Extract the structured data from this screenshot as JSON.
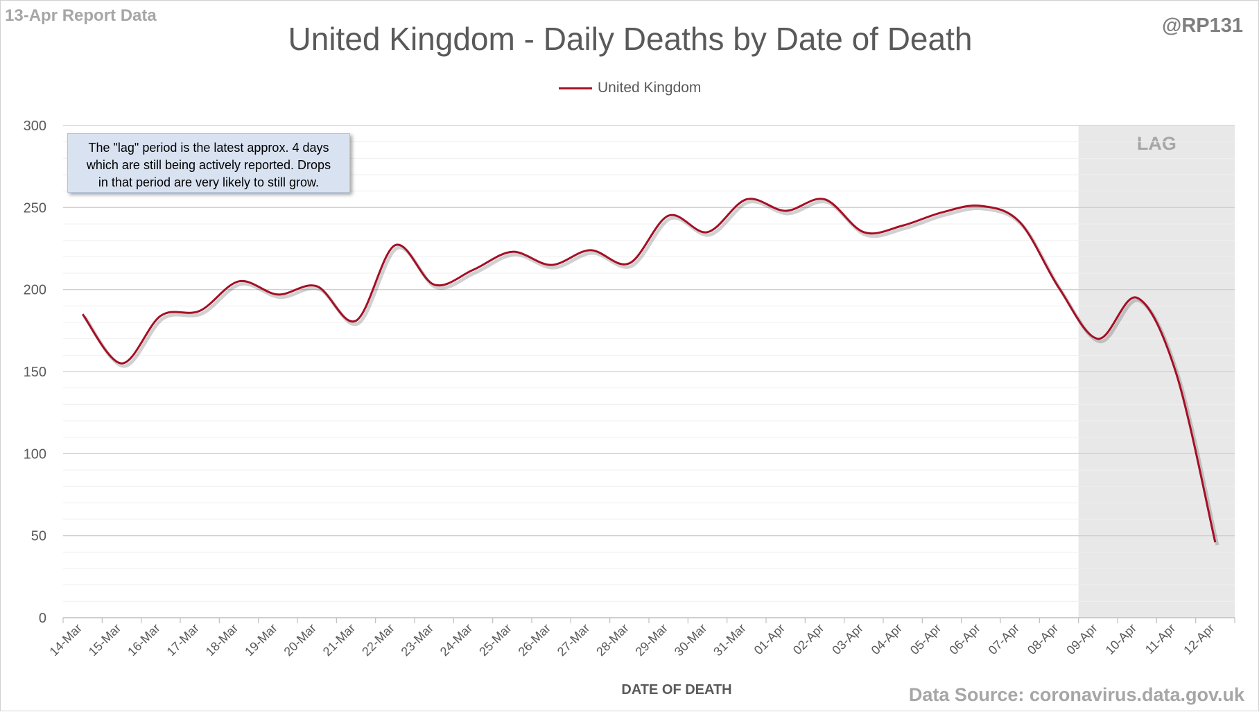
{
  "header": {
    "report_label": "13-Apr Report Data",
    "author": "@RP131",
    "source": "Data Source: coronavirus.data.gov.uk"
  },
  "note_box": {
    "lines": [
      "The \"lag\" period is the latest approx. 4 days",
      "which are still being actively reported.  Drops",
      "in that period are very likely to still grow."
    ]
  },
  "colors": {
    "series": "#a50f25",
    "lag_shade": "#e8e8e8",
    "note_bg": "#d9e2f1"
  },
  "chart_data": {
    "type": "line",
    "title": "United Kingdom - Daily Deaths by Date of Death",
    "xlabel": "DATE OF DEATH",
    "ylabel": "",
    "ylim": [
      0,
      300
    ],
    "yticks": [
      0,
      50,
      100,
      150,
      200,
      250,
      300
    ],
    "grid": true,
    "legend": "top-center",
    "categories": [
      "14-Mar",
      "15-Mar",
      "16-Mar",
      "17-Mar",
      "18-Mar",
      "19-Mar",
      "20-Mar",
      "21-Mar",
      "22-Mar",
      "23-Mar",
      "24-Mar",
      "25-Mar",
      "26-Mar",
      "27-Mar",
      "28-Mar",
      "29-Mar",
      "30-Mar",
      "31-Mar",
      "01-Apr",
      "02-Apr",
      "03-Apr",
      "04-Apr",
      "05-Apr",
      "06-Apr",
      "07-Apr",
      "08-Apr",
      "09-Apr",
      "10-Apr",
      "11-Apr",
      "12-Apr"
    ],
    "series": [
      {
        "name": "United Kingdom",
        "values": [
          185,
          155,
          184,
          187,
          205,
          197,
          202,
          181,
          227,
          203,
          212,
          223,
          215,
          224,
          216,
          245,
          235,
          255,
          248,
          255,
          235,
          239,
          247,
          251,
          241,
          201,
          170,
          195,
          149,
          46
        ]
      }
    ],
    "shaded_region": {
      "label": "LAG",
      "from": "09-Apr",
      "to": "12-Apr"
    }
  }
}
